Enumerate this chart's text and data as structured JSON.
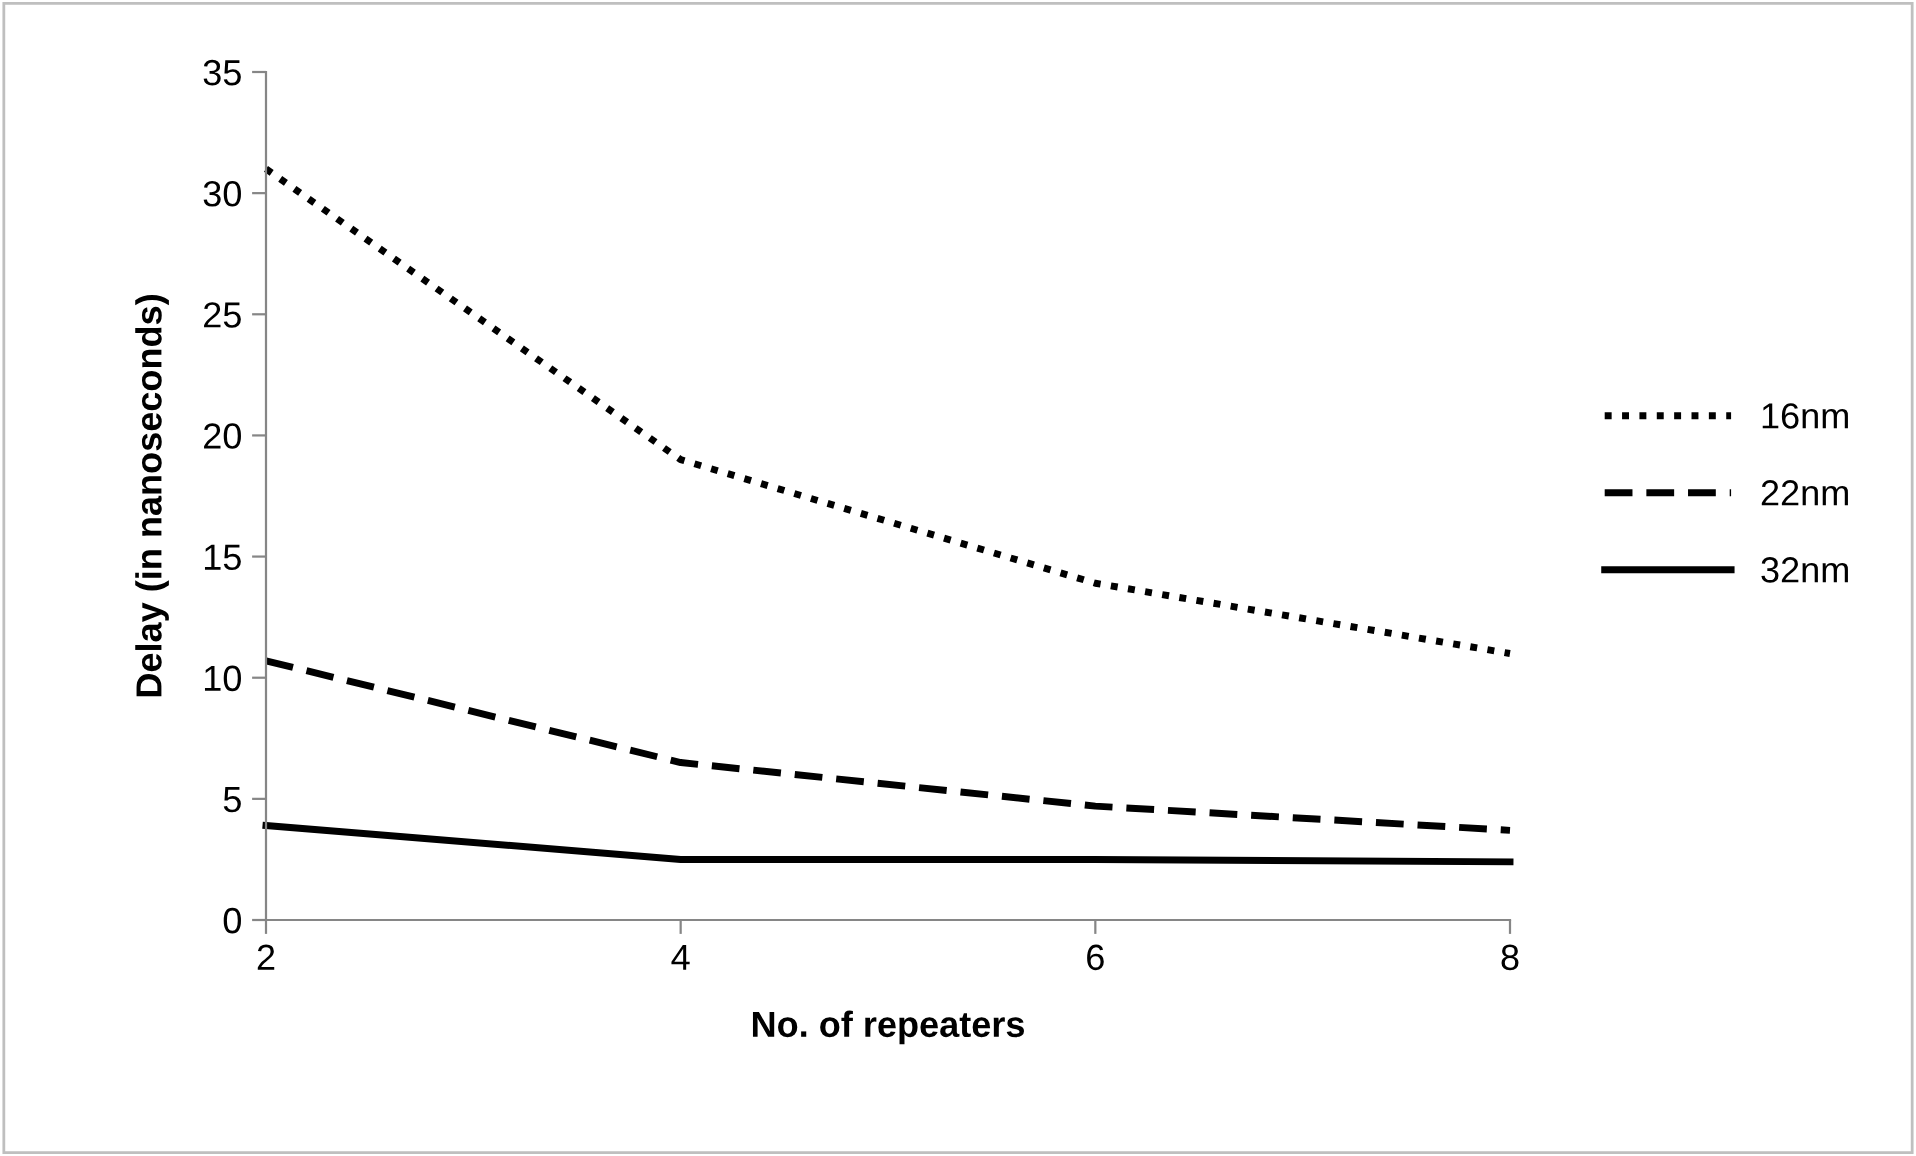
{
  "chart_data": {
    "type": "line",
    "xlabel": "No. of repeaters",
    "ylabel": "Delay (in nanoseconds)",
    "x": [
      2,
      4,
      6,
      8
    ],
    "xlim": [
      2,
      8
    ],
    "xticks": [
      2,
      4,
      6,
      8
    ],
    "ylim": [
      0,
      35
    ],
    "yticks": [
      0,
      5,
      10,
      15,
      20,
      25,
      30,
      35
    ],
    "grid": false,
    "legend": "right",
    "marker": "none",
    "series": [
      {
        "name": "16nm",
        "color": "#000000",
        "line_style": "dotted",
        "values": [
          31,
          19,
          13.9,
          11
        ]
      },
      {
        "name": "22nm",
        "color": "#000000",
        "line_style": "dashed",
        "values": [
          10.7,
          6.5,
          4.7,
          3.7
        ]
      },
      {
        "name": "32nm",
        "color": "#000000",
        "line_style": "solid",
        "values": [
          3.9,
          2.5,
          2.5,
          2.4
        ]
      }
    ]
  }
}
